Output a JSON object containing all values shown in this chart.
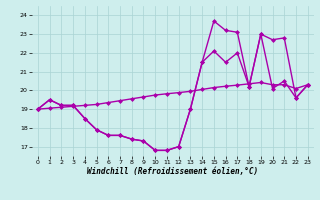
{
  "xlabel": "Windchill (Refroidissement éolien,°C)",
  "bg_color": "#ceeeed",
  "grid_color": "#aad4d4",
  "line_color": "#aa00aa",
  "xlim": [
    -0.5,
    23.5
  ],
  "ylim": [
    16.5,
    24.5
  ],
  "yticks": [
    17,
    18,
    19,
    20,
    21,
    22,
    23,
    24
  ],
  "xticks": [
    0,
    1,
    2,
    3,
    4,
    5,
    6,
    7,
    8,
    9,
    10,
    11,
    12,
    13,
    14,
    15,
    16,
    17,
    18,
    19,
    20,
    21,
    22,
    23
  ],
  "line1_x": [
    0,
    1,
    2,
    3,
    4,
    5,
    6,
    7,
    8,
    9,
    10,
    11,
    12,
    13,
    14,
    15,
    16,
    17,
    18,
    19,
    20,
    21,
    22,
    23
  ],
  "line1_y": [
    19.0,
    19.5,
    19.2,
    19.2,
    18.5,
    17.9,
    17.6,
    17.6,
    17.4,
    17.3,
    16.8,
    16.8,
    17.0,
    19.0,
    21.5,
    23.7,
    23.2,
    23.1,
    20.2,
    23.0,
    20.1,
    20.5,
    19.6,
    20.3
  ],
  "line2_x": [
    0,
    1,
    2,
    3,
    4,
    5,
    6,
    7,
    8,
    9,
    10,
    11,
    12,
    13,
    14,
    15,
    16,
    17,
    18,
    19,
    20,
    21,
    22,
    23
  ],
  "line2_y": [
    19.0,
    19.5,
    19.2,
    19.2,
    18.5,
    17.9,
    17.6,
    17.6,
    17.4,
    17.3,
    16.8,
    16.8,
    17.0,
    19.0,
    21.5,
    22.1,
    21.5,
    22.0,
    20.2,
    23.0,
    22.7,
    22.8,
    19.6,
    20.3
  ],
  "line3_x": [
    0,
    1,
    2,
    3,
    4,
    5,
    6,
    7,
    8,
    9,
    10,
    11,
    12,
    13,
    14,
    15,
    16,
    17,
    18,
    19,
    20,
    21,
    22,
    23
  ],
  "line3_y": [
    19.0,
    19.05,
    19.1,
    19.15,
    19.2,
    19.25,
    19.35,
    19.45,
    19.55,
    19.65,
    19.75,
    19.82,
    19.88,
    19.95,
    20.05,
    20.15,
    20.22,
    20.28,
    20.35,
    20.42,
    20.3,
    20.3,
    20.1,
    20.3
  ],
  "marker": "D",
  "markersize": 2.5,
  "linewidth": 1.0,
  "axis_fontsize": 5.5,
  "tick_fontsize": 4.5
}
